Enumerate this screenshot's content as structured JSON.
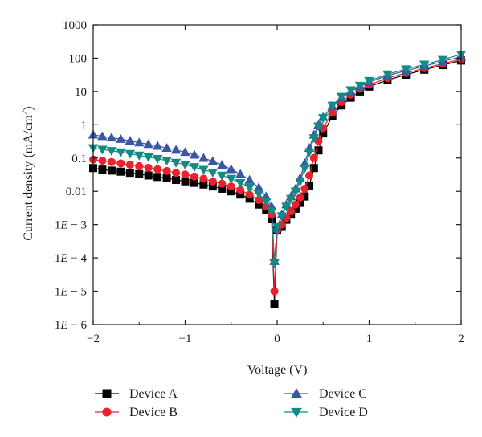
{
  "chart_data": {
    "type": "line",
    "xlabel": "Voltage (V)",
    "ylabel_main": "Current density (mA/cm",
    "ylabel_sup": "2",
    "ylabel_close": ")",
    "xlim": [
      -2,
      2
    ],
    "ylim": [
      1e-06,
      1000
    ],
    "yscale": "log",
    "grid": false,
    "legend_position": "bottom",
    "x_ticks": [
      {
        "value": -2,
        "label": "−2"
      },
      {
        "value": -1,
        "label": "−1"
      },
      {
        "value": 0,
        "label": "0"
      },
      {
        "value": 1,
        "label": "1"
      },
      {
        "value": 2,
        "label": "2"
      }
    ],
    "y_ticks": [
      {
        "value": 1000,
        "label": "1000"
      },
      {
        "value": 100,
        "label": "100"
      },
      {
        "value": 10,
        "label": "10"
      },
      {
        "value": 1,
        "label": "1"
      },
      {
        "value": 0.1,
        "label": "0.1"
      },
      {
        "value": 0.01,
        "label": "0.01"
      },
      {
        "value": 0.001,
        "label_pre": "1",
        "label_e": "E",
        "label_post": " − 3"
      },
      {
        "value": 0.0001,
        "label_pre": "1",
        "label_e": "E",
        "label_post": " − 4"
      },
      {
        "value": 1e-05,
        "label_pre": "1",
        "label_e": "E",
        "label_post": " − 5"
      },
      {
        "value": 1e-06,
        "label_pre": "1",
        "label_e": "E",
        "label_post": " − 6"
      }
    ],
    "series": [
      {
        "name": "Device A",
        "marker": "square",
        "color": "#000000",
        "points": [
          [
            -2,
            0.05
          ],
          [
            -1.9,
            0.045
          ],
          [
            -1.8,
            0.042
          ],
          [
            -1.7,
            0.039
          ],
          [
            -1.6,
            0.036
          ],
          [
            -1.5,
            0.033
          ],
          [
            -1.4,
            0.03
          ],
          [
            -1.3,
            0.027
          ],
          [
            -1.2,
            0.025
          ],
          [
            -1.1,
            0.022
          ],
          [
            -1,
            0.02
          ],
          [
            -0.9,
            0.018
          ],
          [
            -0.8,
            0.016
          ],
          [
            -0.7,
            0.014
          ],
          [
            -0.6,
            0.012
          ],
          [
            -0.5,
            0.01
          ],
          [
            -0.4,
            0.008
          ],
          [
            -0.3,
            0.006
          ],
          [
            -0.2,
            0.004
          ],
          [
            -0.12,
            0.0028
          ],
          [
            -0.06,
            0.0015
          ],
          [
            -0.03,
            4.2e-06
          ],
          [
            0,
            0.0007
          ],
          [
            0.05,
            0.0009
          ],
          [
            0.1,
            0.0014
          ],
          [
            0.15,
            0.002
          ],
          [
            0.2,
            0.003
          ],
          [
            0.25,
            0.0045
          ],
          [
            0.3,
            0.007
          ],
          [
            0.35,
            0.015
          ],
          [
            0.4,
            0.05
          ],
          [
            0.45,
            0.17
          ],
          [
            0.5,
            0.55
          ],
          [
            0.6,
            1.8
          ],
          [
            0.7,
            3.8
          ],
          [
            0.8,
            6.5
          ],
          [
            0.9,
            10
          ],
          [
            1,
            14
          ],
          [
            1.2,
            22
          ],
          [
            1.4,
            32
          ],
          [
            1.6,
            45
          ],
          [
            1.8,
            62
          ],
          [
            2,
            85
          ]
        ]
      },
      {
        "name": "Device B",
        "marker": "circle",
        "color": "#e8232e",
        "points": [
          [
            -2,
            0.09
          ],
          [
            -1.9,
            0.083
          ],
          [
            -1.8,
            0.076
          ],
          [
            -1.7,
            0.069
          ],
          [
            -1.6,
            0.063
          ],
          [
            -1.5,
            0.057
          ],
          [
            -1.4,
            0.051
          ],
          [
            -1.3,
            0.046
          ],
          [
            -1.2,
            0.041
          ],
          [
            -1.1,
            0.036
          ],
          [
            -1,
            0.032
          ],
          [
            -0.9,
            0.028
          ],
          [
            -0.8,
            0.024
          ],
          [
            -0.7,
            0.02
          ],
          [
            -0.6,
            0.017
          ],
          [
            -0.5,
            0.014
          ],
          [
            -0.4,
            0.011
          ],
          [
            -0.3,
            0.008
          ],
          [
            -0.2,
            0.0055
          ],
          [
            -0.12,
            0.0035
          ],
          [
            -0.06,
            0.002
          ],
          [
            -0.03,
            1e-05
          ],
          [
            0,
            0.0007
          ],
          [
            0.05,
            0.001
          ],
          [
            0.1,
            0.0016
          ],
          [
            0.15,
            0.0025
          ],
          [
            0.2,
            0.004
          ],
          [
            0.25,
            0.0065
          ],
          [
            0.3,
            0.012
          ],
          [
            0.35,
            0.03
          ],
          [
            0.4,
            0.1
          ],
          [
            0.45,
            0.32
          ],
          [
            0.5,
            0.8
          ],
          [
            0.6,
            2.3
          ],
          [
            0.7,
            4.8
          ],
          [
            0.8,
            8
          ],
          [
            0.9,
            12
          ],
          [
            1,
            16
          ],
          [
            1.2,
            25
          ],
          [
            1.4,
            36
          ],
          [
            1.6,
            50
          ],
          [
            1.8,
            68
          ],
          [
            2,
            95
          ]
        ]
      },
      {
        "name": "Device C",
        "marker": "triangle-up",
        "color": "#3a57a6",
        "points": [
          [
            -2,
            0.5
          ],
          [
            -1.9,
            0.45
          ],
          [
            -1.8,
            0.41
          ],
          [
            -1.7,
            0.37
          ],
          [
            -1.6,
            0.33
          ],
          [
            -1.5,
            0.29
          ],
          [
            -1.4,
            0.26
          ],
          [
            -1.3,
            0.23
          ],
          [
            -1.2,
            0.2
          ],
          [
            -1.1,
            0.175
          ],
          [
            -1,
            0.15
          ],
          [
            -0.9,
            0.125
          ],
          [
            -0.8,
            0.1
          ],
          [
            -0.7,
            0.08
          ],
          [
            -0.6,
            0.062
          ],
          [
            -0.5,
            0.046
          ],
          [
            -0.4,
            0.033
          ],
          [
            -0.3,
            0.022
          ],
          [
            -0.2,
            0.013
          ],
          [
            -0.12,
            0.007
          ],
          [
            -0.06,
            0.0035
          ],
          [
            -0.03,
            8e-05
          ],
          [
            0,
            0.0008
          ],
          [
            0.05,
            0.002
          ],
          [
            0.1,
            0.004
          ],
          [
            0.15,
            0.007
          ],
          [
            0.2,
            0.012
          ],
          [
            0.25,
            0.025
          ],
          [
            0.3,
            0.07
          ],
          [
            0.35,
            0.2
          ],
          [
            0.4,
            0.5
          ],
          [
            0.45,
            1
          ],
          [
            0.5,
            1.7
          ],
          [
            0.6,
            3.6
          ],
          [
            0.7,
            6.5
          ],
          [
            0.8,
            10
          ],
          [
            0.9,
            14
          ],
          [
            1,
            19
          ],
          [
            1.2,
            30
          ],
          [
            1.4,
            42
          ],
          [
            1.6,
            58
          ],
          [
            1.8,
            80
          ],
          [
            2,
            110
          ]
        ]
      },
      {
        "name": "Device D",
        "marker": "triangle-down",
        "color": "#138a83",
        "points": [
          [
            -2,
            0.2
          ],
          [
            -1.9,
            0.18
          ],
          [
            -1.8,
            0.165
          ],
          [
            -1.7,
            0.15
          ],
          [
            -1.6,
            0.135
          ],
          [
            -1.5,
            0.12
          ],
          [
            -1.4,
            0.107
          ],
          [
            -1.3,
            0.095
          ],
          [
            -1.2,
            0.084
          ],
          [
            -1.1,
            0.073
          ],
          [
            -1,
            0.063
          ],
          [
            -0.9,
            0.054
          ],
          [
            -0.8,
            0.045
          ],
          [
            -0.7,
            0.037
          ],
          [
            -0.6,
            0.03
          ],
          [
            -0.5,
            0.024
          ],
          [
            -0.4,
            0.018
          ],
          [
            -0.3,
            0.013
          ],
          [
            -0.2,
            0.0085
          ],
          [
            -0.12,
            0.005
          ],
          [
            -0.06,
            0.0025
          ],
          [
            -0.03,
            7e-05
          ],
          [
            0,
            0.0009
          ],
          [
            0.05,
            0.0018
          ],
          [
            0.1,
            0.0035
          ],
          [
            0.15,
            0.006
          ],
          [
            0.2,
            0.01
          ],
          [
            0.25,
            0.02
          ],
          [
            0.3,
            0.05
          ],
          [
            0.35,
            0.15
          ],
          [
            0.4,
            0.4
          ],
          [
            0.45,
            0.9
          ],
          [
            0.5,
            1.6
          ],
          [
            0.6,
            3.8
          ],
          [
            0.7,
            7
          ],
          [
            0.8,
            11
          ],
          [
            0.9,
            15
          ],
          [
            1,
            21
          ],
          [
            1.2,
            33
          ],
          [
            1.4,
            47
          ],
          [
            1.6,
            65
          ],
          [
            1.8,
            90
          ],
          [
            2,
            130
          ]
        ]
      }
    ]
  }
}
